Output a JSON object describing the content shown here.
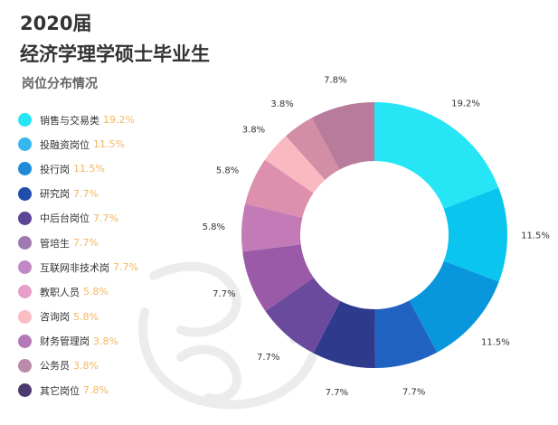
{
  "header": {
    "year": "2020届",
    "title": "经济学理学硕士毕业生",
    "subtitle": "岗位分布情况"
  },
  "chart_data": {
    "type": "pie",
    "donut": true,
    "legend_position": "left",
    "categories": [
      "销售与交易类",
      "投融资岗位",
      "投行岗",
      "研究岗",
      "中后台岗位",
      "管培生",
      "互联网非技术岗",
      "教职人员",
      "咨询岗",
      "财务管理岗",
      "公务员",
      "其它岗位"
    ],
    "values": [
      19.2,
      11.5,
      11.5,
      7.7,
      7.7,
      7.7,
      7.7,
      5.8,
      5.8,
      3.8,
      3.8,
      7.8
    ],
    "value_labels": [
      "19.2%",
      "11.5%",
      "11.5%",
      "7.7%",
      "7.7%",
      "7.7%",
      "7.7%",
      "5.8%",
      "5.8%",
      "3.8%",
      "3.8%",
      "7.8%"
    ],
    "colors": [
      "#26e6f5",
      "#0ac6ef",
      "#0896dc",
      "#1f62c0",
      "#2e3a8c",
      "#6a4a9c",
      "#9b5aa8",
      "#c37bb7",
      "#dd8fae",
      "#f9b9c0",
      "#d18ea4",
      "#b97b9b",
      "#6e4f82"
    ],
    "legend_colors": [
      "#26e6f5",
      "#38b6f0",
      "#1f8bd8",
      "#1f4faa",
      "#5c4497",
      "#a079b3",
      "#c088c4",
      "#e59fca",
      "#fbbcc2",
      "#b679b8",
      "#b98aa9",
      "#4c3970"
    ]
  }
}
